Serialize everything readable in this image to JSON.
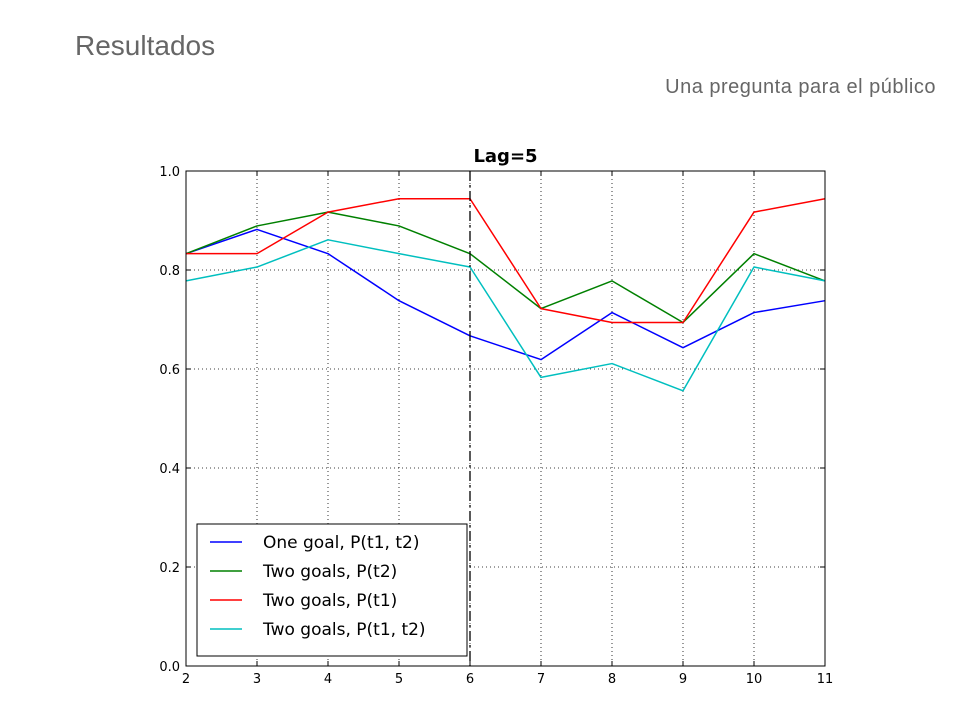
{
  "slide": {
    "title": "Resultados",
    "subtitle": "Una pregunta para el público"
  },
  "chart_data": {
    "type": "line",
    "title": "Lag=5",
    "xlabel": "",
    "ylabel": "",
    "x": [
      2,
      3,
      4,
      5,
      6,
      7,
      8,
      9,
      10,
      11
    ],
    "xlim": [
      2,
      11
    ],
    "ylim": [
      0.0,
      1.0
    ],
    "xticks": [
      "2",
      "3",
      "4",
      "5",
      "6",
      "7",
      "8",
      "9",
      "10",
      "11"
    ],
    "yticks": [
      "0.0",
      "0.2",
      "0.4",
      "0.6",
      "0.8",
      "1.0"
    ],
    "grid": true,
    "vline": {
      "x": 6,
      "style": "dash-dot",
      "color": "#000000"
    },
    "legend_position": "lower-left",
    "series": [
      {
        "name": "One goal, P(t1, t2)",
        "color": "#0000ff",
        "values": [
          0.833,
          0.882,
          0.833,
          0.738,
          0.667,
          0.619,
          0.714,
          0.643,
          0.714,
          0.738
        ]
      },
      {
        "name": "Two goals, P(t2)",
        "color": "#008000",
        "values": [
          0.833,
          0.889,
          0.917,
          0.889,
          0.833,
          0.722,
          0.778,
          0.694,
          0.833,
          0.778
        ]
      },
      {
        "name": "Two goals, P(t1)",
        "color": "#ff0000",
        "values": [
          0.833,
          0.833,
          0.917,
          0.944,
          0.944,
          0.722,
          0.694,
          0.694,
          0.917,
          0.944
        ]
      },
      {
        "name": "Two goals, P(t1, t2)",
        "color": "#00bfbf",
        "values": [
          0.778,
          0.806,
          0.861,
          0.833,
          0.806,
          0.583,
          0.611,
          0.556,
          0.806,
          0.778
        ]
      }
    ]
  }
}
